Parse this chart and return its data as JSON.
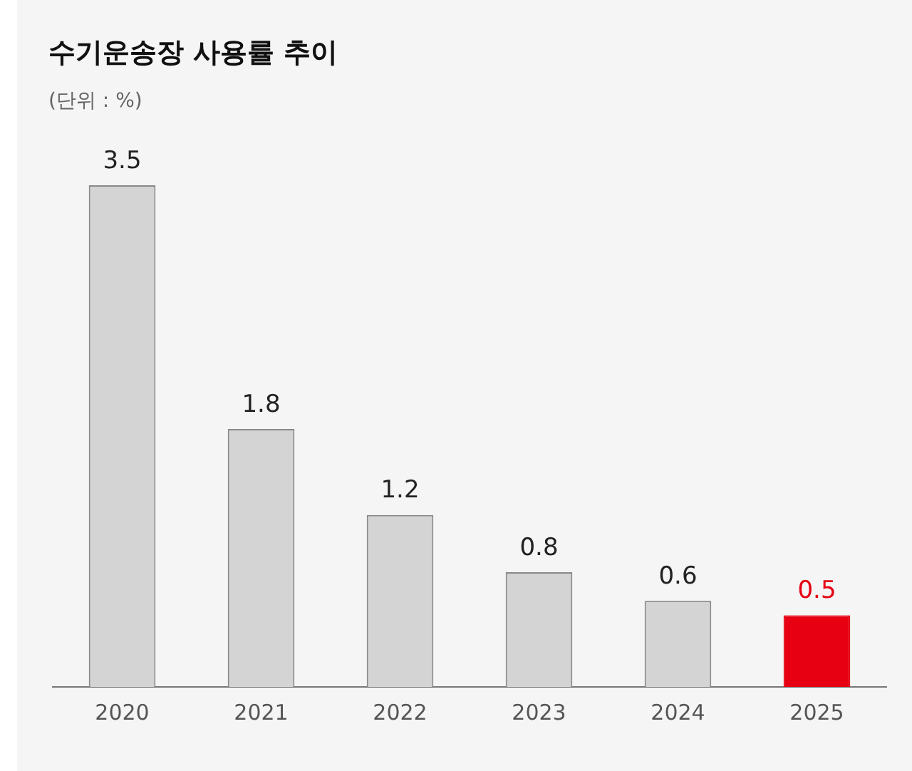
{
  "chart_data": {
    "type": "bar",
    "title": "수기운송장 사용률 추이",
    "subtitle": "(단위 : %)",
    "categories": [
      "2020",
      "2021",
      "2022",
      "2023",
      "2024",
      "2025"
    ],
    "values": [
      3.5,
      1.8,
      1.2,
      0.8,
      0.6,
      0.5
    ],
    "colors": [
      "#d4d4d4",
      "#d4d4d4",
      "#d4d4d4",
      "#d4d4d4",
      "#d4d4d4",
      "#e60012"
    ],
    "data_labels": true,
    "grid": false,
    "legend": false
  }
}
